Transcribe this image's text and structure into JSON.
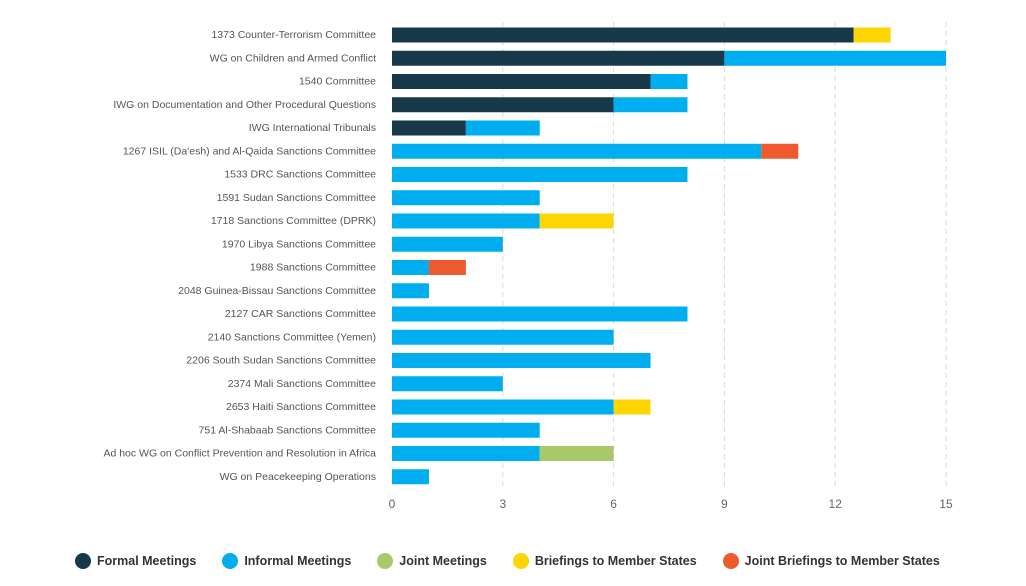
{
  "chart_data": {
    "type": "bar",
    "orientation": "horizontal",
    "stacked": true,
    "categories": [
      "1373 Counter-Terrorism Committee",
      "WG on Children and Armed Conflict",
      "1540 Committee",
      "IWG on Documentation and Other Procedural Questions",
      "IWG International Tribunals",
      "1267 ISIL (Da'esh) and Al-Qaida Sanctions Committee",
      "1533 DRC Sanctions Committee",
      "1591 Sudan Sanctions Committee",
      "1718 Sanctions Committee (DPRK)",
      "1970 Libya Sanctions Committee",
      "1988 Sanctions Committee",
      "2048 Guinea-Bissau Sanctions Committee",
      "2127 CAR Sanctions Committee",
      "2140 Sanctions Committee (Yemen)",
      "2206 South Sudan Sanctions Committee",
      "2374 Mali Sanctions Committee",
      "2653 Haiti Sanctions Committee",
      "751 Al-Shabaab Sanctions Committee",
      "Ad hoc WG on Conflict Prevention and Resolution in Africa",
      "WG on Peacekeeping Operations"
    ],
    "series": [
      {
        "name": "Formal Meetings",
        "color": "#17394a",
        "values": [
          12.5,
          9,
          7,
          6,
          2,
          0,
          0,
          0,
          0,
          0,
          0,
          0,
          0,
          0,
          0,
          0,
          0,
          0,
          0,
          0
        ]
      },
      {
        "name": "Informal Meetings",
        "color": "#00aeef",
        "values": [
          0,
          6,
          1,
          2,
          2,
          10,
          8,
          4,
          4,
          3,
          1,
          1,
          8,
          6,
          7,
          3,
          6,
          4,
          4,
          1
        ]
      },
      {
        "name": "Joint Meetings",
        "color": "#a8c86a",
        "values": [
          0,
          0,
          0,
          0,
          0,
          0,
          0,
          0,
          0,
          0,
          0,
          0,
          0,
          0,
          0,
          0,
          0,
          0,
          2,
          0
        ]
      },
      {
        "name": "Briefings to Member States",
        "color": "#ffd500",
        "values": [
          1,
          0,
          0,
          0,
          0,
          0,
          0,
          0,
          2,
          0,
          0,
          0,
          0,
          0,
          0,
          0,
          1,
          0,
          0,
          0
        ]
      },
      {
        "name": "Joint Briefings to Member States",
        "color": "#ee5a2d",
        "values": [
          0,
          0,
          0,
          0,
          0,
          1,
          0,
          0,
          0,
          0,
          1,
          0,
          0,
          0,
          0,
          0,
          0,
          0,
          0,
          0
        ]
      }
    ],
    "xticks": [
      "0",
      "3",
      "6",
      "9",
      "12",
      "15"
    ],
    "xlim": [
      0,
      15
    ],
    "grid": "vertical-dashed",
    "legend_position": "bottom"
  }
}
